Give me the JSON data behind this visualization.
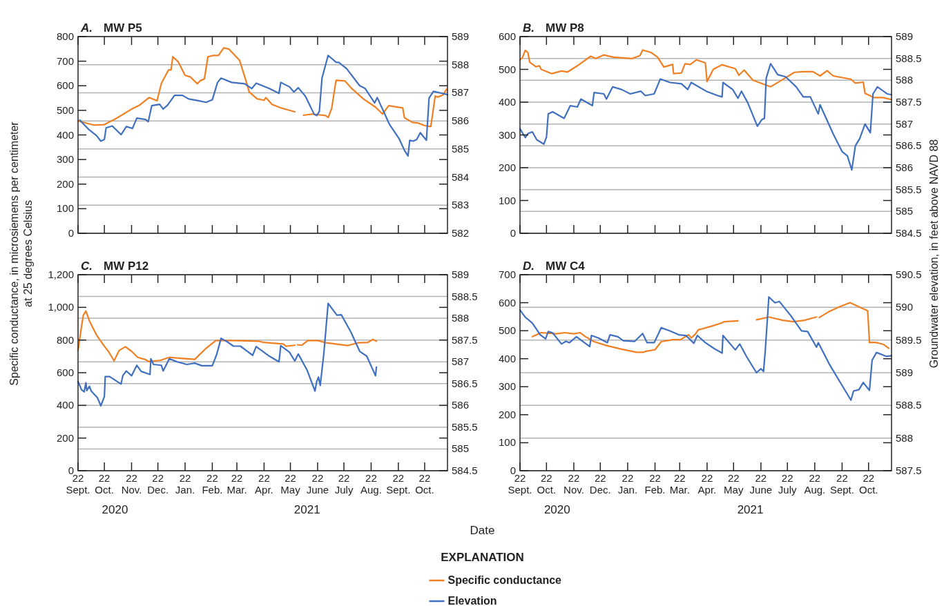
{
  "chart_data": [
    {
      "type": "line",
      "title": "A. MW P5",
      "ylabel": "Specific conductance, in microsiemens per centimeter at 25 degrees Celsius",
      "xlim": [
        "2020-09-22",
        "2021-11-17"
      ],
      "xticks": [
        {
          "value": "2020-09-22",
          "label": null
        },
        {
          "value": "2020-10-22",
          "label": null
        },
        {
          "value": "2020-11-22",
          "label": null
        },
        {
          "value": "2020-12-22",
          "label": null
        },
        {
          "value": "2021-01-22",
          "label": null
        },
        {
          "value": "2021-02-22",
          "label": null
        },
        {
          "value": "2021-03-22",
          "label": null
        },
        {
          "value": "2021-04-22",
          "label": null
        },
        {
          "value": "2021-05-22",
          "label": null
        },
        {
          "value": "2021-06-22",
          "label": null
        },
        {
          "value": "2021-07-22",
          "label": null
        },
        {
          "value": "2021-08-22",
          "label": null
        },
        {
          "value": "2021-09-22",
          "label": null
        },
        {
          "value": "2021-10-22",
          "label": null
        }
      ],
      "ylim": [
        0,
        800
      ],
      "yticks": [
        0,
        100,
        200,
        300,
        400,
        500,
        600,
        700,
        800
      ],
      "y2lim": [
        582,
        589
      ],
      "y2ticks": [
        582,
        583,
        584,
        585,
        586,
        587,
        588,
        589
      ],
      "grid": "y2",
      "tick_labels": "y",
      "series": [
        {
          "type": "line",
          "color": "#f07f22",
          "x": [
            "2020-09-22",
            "2020-10-10",
            "2020-10-22",
            "2020-11-05",
            "2020-11-22",
            "2020-12-01",
            "2020-12-12",
            "2020-12-21",
            "2020-12-26",
            "2021-01-03",
            "2021-01-06",
            "2021-01-08",
            "2021-01-14",
            "2021-01-22",
            "2021-01-28",
            "2021-02-05",
            "2021-02-08",
            "2021-02-13",
            "2021-02-17",
            "2021-02-23",
            "2021-03-01",
            "2021-03-07",
            "2021-03-13",
            "2021-03-25",
            "2021-04-01",
            "2021-04-05",
            "2021-04-14",
            "2021-04-22",
            "2021-04-24",
            "2021-05-01",
            "2021-05-11",
            "2021-05-27",
            "2021-06-01",
            "2021-06-06",
            "2021-06-16",
            "2021-07-01",
            "2021-07-04",
            "2021-07-08",
            "2021-07-13",
            "2021-07-23",
            "2021-07-30",
            "2021-08-13",
            "2021-08-27",
            "2021-09-04",
            "2021-09-11",
            "2021-09-27",
            "2021-09-29",
            "2021-10-08",
            "2021-10-14",
            "2021-10-22",
            "2021-10-29",
            "2021-11-03",
            "2021-11-06",
            "2021-11-12",
            "2021-11-16"
          ],
          "values": [
            457,
            440,
            442,
            468,
            505,
            521,
            552,
            539,
            610,
            664,
            664,
            718,
            698,
            642,
            636,
            608,
            620,
            628,
            718,
            723,
            723,
            754,
            749,
            704,
            625,
            575,
            547,
            541,
            552,
            524,
            510,
            494,
            null,
            480,
            485,
            479,
            471,
            507,
            622,
            620,
            592,
            547,
            513,
            485,
            519,
            510,
            470,
            451,
            449,
            438,
            434,
            558,
            554,
            563,
            586
          ]
        },
        {
          "type": "line",
          "axis": "y2",
          "color": "#3f6fbf",
          "x": [
            "2020-09-24",
            "2020-10-04",
            "2020-10-13",
            "2020-10-18",
            "2020-10-22",
            "2020-10-24",
            "2020-10-31",
            "2020-11-10",
            "2020-11-13",
            "2020-11-16",
            "2020-11-23",
            "2020-11-28",
            "2020-12-08",
            "2020-12-11",
            "2020-12-15",
            "2020-12-24",
            "2020-12-28",
            "2021-01-02",
            "2021-01-10",
            "2021-01-19",
            "2021-01-26",
            "2021-02-04",
            "2021-02-15",
            "2021-02-22",
            "2021-02-28",
            "2021-03-04",
            "2021-03-16",
            "2021-03-31",
            "2021-04-08",
            "2021-04-13",
            "2021-04-28",
            "2021-05-09",
            "2021-05-11",
            "2021-05-21",
            "2021-05-26",
            "2021-05-31",
            "2021-06-08",
            "2021-06-18",
            "2021-06-21",
            "2021-06-24",
            "2021-06-27",
            "2021-07-04",
            "2021-07-13",
            "2021-07-16",
            "2021-07-25",
            "2021-08-09",
            "2021-08-15",
            "2021-08-26",
            "2021-08-29",
            "2021-09-12",
            "2021-09-23",
            "2021-09-29",
            "2021-10-03",
            "2021-10-05",
            "2021-10-09",
            "2021-10-13",
            "2021-10-17",
            "2021-10-24",
            "2021-10-27",
            "2021-11-01",
            "2021-11-11",
            "2021-11-17"
          ],
          "values": [
            586.03,
            585.7,
            585.48,
            585.28,
            585.34,
            585.75,
            585.82,
            585.51,
            585.65,
            585.8,
            585.73,
            586.1,
            586.05,
            585.97,
            586.54,
            586.59,
            586.42,
            586.56,
            586.91,
            586.91,
            586.78,
            586.73,
            586.66,
            586.75,
            587.37,
            587.52,
            587.37,
            587.32,
            587.15,
            587.34,
            587.15,
            586.98,
            587.37,
            587.21,
            587.03,
            587.18,
            586.88,
            586.24,
            586.19,
            586.34,
            587.52,
            588.33,
            588.09,
            588.08,
            587.86,
            587.25,
            587.16,
            586.64,
            586.83,
            585.87,
            585.36,
            584.95,
            584.75,
            585.31,
            585.28,
            585.34,
            585.58,
            585.31,
            586.81,
            587.05,
            586.98,
            586.93
          ]
        }
      ]
    },
    {
      "type": "line",
      "title": "B. MW P8",
      "y2label": "Groundwater elevation, in feet above NAVD 88",
      "xlim": [
        "2020-09-22",
        "2021-11-17"
      ],
      "xticks": [
        {
          "value": "2020-09-22",
          "label": null
        },
        {
          "value": "2020-10-22",
          "label": null
        },
        {
          "value": "2020-11-22",
          "label": null
        },
        {
          "value": "2020-12-22",
          "label": null
        },
        {
          "value": "2021-01-22",
          "label": null
        },
        {
          "value": "2021-02-22",
          "label": null
        },
        {
          "value": "2021-03-22",
          "label": null
        },
        {
          "value": "2021-04-22",
          "label": null
        },
        {
          "value": "2021-05-22",
          "label": null
        },
        {
          "value": "2021-06-22",
          "label": null
        },
        {
          "value": "2021-07-22",
          "label": null
        },
        {
          "value": "2021-08-22",
          "label": null
        },
        {
          "value": "2021-09-22",
          "label": null
        },
        {
          "value": "2021-10-22",
          "label": null
        }
      ],
      "ylim": [
        0,
        600
      ],
      "yticks": [
        0,
        100,
        200,
        300,
        400,
        500,
        600
      ],
      "y2lim": [
        584.5,
        589
      ],
      "y2ticks": [
        584.5,
        585,
        585.5,
        586,
        586.5,
        587,
        587.5,
        588,
        588.5,
        589
      ],
      "grid": "y2",
      "tick_labels": "y",
      "series": [
        {
          "type": "line",
          "color": "#f07f22",
          "x": [
            "2020-09-22",
            "2020-09-25",
            "2020-09-28",
            "2020-10-01",
            "2020-10-03",
            "2020-10-10",
            "2020-10-14",
            "2020-10-16",
            "2020-10-28",
            "2020-11-08",
            "2020-11-15",
            "2020-11-26",
            "2020-12-11",
            "2020-12-17",
            "2020-12-26",
            "2021-01-06",
            "2021-01-27",
            "2021-02-05",
            "2021-02-08",
            "2021-02-18",
            "2021-02-25",
            "2021-03-04",
            "2021-03-14",
            "2021-03-15",
            "2021-03-24",
            "2021-03-28",
            "2021-04-03",
            "2021-04-10",
            "2021-04-20",
            "2021-04-22",
            "2021-04-29",
            "2021-05-09",
            "2021-05-24",
            "2021-05-28",
            "2021-06-03",
            "2021-06-13",
            "2021-06-22",
            "2021-07-03",
            "2021-07-13",
            "2021-07-30",
            "2021-08-09",
            "2021-08-20",
            "2021-08-28",
            "2021-09-05",
            "2021-09-12",
            "2021-10-02",
            "2021-10-07",
            "2021-10-16",
            "2021-10-18",
            "2021-10-28",
            "2021-11-07",
            "2021-11-17"
          ],
          "values": [
            529,
            537,
            558,
            551,
            522,
            508,
            511,
            500,
            487,
            495,
            492,
            511,
            540,
            533,
            544,
            537,
            533,
            542,
            559,
            551,
            537,
            507,
            515,
            487,
            489,
            517,
            515,
            529,
            520,
            463,
            500,
            514,
            502,
            482,
            498,
            467,
            458,
            447,
            463,
            491,
            493,
            493,
            480,
            496,
            480,
            470,
            458,
            461,
            427,
            414,
            414,
            408
          ]
        },
        {
          "type": "line",
          "axis": "y2",
          "color": "#3f6fbf",
          "x": [
            "2020-09-22",
            "2020-09-28",
            "2020-10-01",
            "2020-10-06",
            "2020-10-11",
            "2020-10-19",
            "2020-10-22",
            "2020-10-24",
            "2020-10-29",
            "2020-11-11",
            "2020-11-18",
            "2020-11-26",
            "2020-11-30",
            "2020-12-13",
            "2020-12-15",
            "2020-12-26",
            "2020-12-29",
            "2021-01-05",
            "2021-01-15",
            "2021-01-25",
            "2021-02-06",
            "2021-02-11",
            "2021-02-21",
            "2021-02-28",
            "2021-03-11",
            "2021-03-24",
            "2021-03-31",
            "2021-04-04",
            "2021-04-21",
            "2021-05-04",
            "2021-05-09",
            "2021-05-10",
            "2021-05-21",
            "2021-05-27",
            "2021-05-31",
            "2021-06-07",
            "2021-06-18",
            "2021-06-23",
            "2021-06-26",
            "2021-06-28",
            "2021-07-03",
            "2021-07-11",
            "2021-07-20",
            "2021-08-01",
            "2021-08-09",
            "2021-08-17",
            "2021-08-26",
            "2021-08-28",
            "2021-09-12",
            "2021-09-22",
            "2021-09-28",
            "2021-10-03",
            "2021-10-07",
            "2021-10-12",
            "2021-10-18",
            "2021-10-24",
            "2021-10-27",
            "2021-11-01",
            "2021-11-12",
            "2021-11-17"
          ],
          "values": [
            586.89,
            586.69,
            586.78,
            586.82,
            586.64,
            586.54,
            586.7,
            587.23,
            587.28,
            587.13,
            587.42,
            587.39,
            587.57,
            587.42,
            587.72,
            587.69,
            587.57,
            587.85,
            587.79,
            587.69,
            587.75,
            587.65,
            587.69,
            588.03,
            587.95,
            587.92,
            587.79,
            587.95,
            587.75,
            587.65,
            587.62,
            587.95,
            587.79,
            587.59,
            587.75,
            587.49,
            586.95,
            587.1,
            587.13,
            588.05,
            588.38,
            588.13,
            588.08,
            587.85,
            587.62,
            587.62,
            587.23,
            587.44,
            586.77,
            586.37,
            586.27,
            585.95,
            586.5,
            586.67,
            587.0,
            586.8,
            587.69,
            587.85,
            587.69,
            587.67
          ]
        }
      ]
    },
    {
      "type": "line",
      "title": "C. MW P12",
      "xlabel": "Date",
      "annotations": [
        "2020",
        "2021"
      ],
      "xlim": [
        "2020-09-22",
        "2021-11-17"
      ],
      "xticks": [
        {
          "value": "2020-09-22",
          "label": "22\nSept."
        },
        {
          "value": "2020-10-22",
          "label": "22\nOct."
        },
        {
          "value": "2020-11-22",
          "label": "22\nNov."
        },
        {
          "value": "2020-12-22",
          "label": "22\nDec."
        },
        {
          "value": "2021-01-22",
          "label": "22\nJan."
        },
        {
          "value": "2021-02-22",
          "label": "22\nFeb."
        },
        {
          "value": "2021-03-22",
          "label": "22\nMar."
        },
        {
          "value": "2021-04-22",
          "label": "22\nApr."
        },
        {
          "value": "2021-05-22",
          "label": "22\nMay"
        },
        {
          "value": "2021-06-22",
          "label": "22\nJune"
        },
        {
          "value": "2021-07-22",
          "label": "22\nJuly"
        },
        {
          "value": "2021-08-22",
          "label": "22\nAug."
        },
        {
          "value": "2021-09-22",
          "label": "22\nSept."
        },
        {
          "value": "2021-10-22",
          "label": "22\nOct."
        }
      ],
      "ylim": [
        0,
        1200
      ],
      "yticks": [
        0,
        200,
        400,
        600,
        800,
        {
          "value": 1000,
          "label": "1,000"
        },
        {
          "value": 1200,
          "label": "1,200"
        }
      ],
      "y2lim": [
        584.5,
        589
      ],
      "y2ticks": [
        584.5,
        585,
        585.5,
        586,
        586.5,
        587,
        587.5,
        588,
        588.5,
        589
      ],
      "grid": "y2",
      "series": [
        {
          "type": "line",
          "color": "#f07f22",
          "x": [
            "2020-09-22",
            "2020-09-25",
            "2020-09-28",
            "2020-10-01",
            "2020-10-05",
            "2020-10-13",
            "2020-10-22",
            "2020-10-27",
            "2020-11-02",
            "2020-11-08",
            "2020-11-15",
            "2020-11-22",
            "2020-11-29",
            "2020-12-07",
            "2020-12-12",
            "2020-12-25",
            "2021-01-04",
            "2021-01-17",
            "2021-02-02",
            "2021-02-14",
            "2021-02-26",
            "2021-03-17",
            "2021-04-16",
            "2021-04-22",
            "2021-05-14",
            "2021-05-17",
            "2021-05-27",
            "2021-05-28",
            "2021-05-30",
            "2021-06-04",
            "2021-06-11",
            "2021-06-22",
            "2021-07-02",
            "2021-07-26",
            "2021-08-07",
            "2021-08-18",
            "2021-08-24",
            "2021-08-28"
          ],
          "values": [
            737,
            849,
            952,
            978,
            917,
            831,
            762,
            728,
            673,
            737,
            759,
            731,
            694,
            682,
            668,
            676,
            694,
            688,
            682,
            745,
            797,
            797,
            793,
            785,
            776,
            762,
            768,
            null,
            771,
            768,
            797,
            797,
            783,
            766,
            783,
            785,
            804,
            793
          ]
        },
        {
          "type": "line",
          "axis": "y2",
          "color": "#3f6fbf",
          "x": [
            "2020-09-22",
            "2020-09-26",
            "2020-09-29",
            "2020-10-01",
            "2020-10-02",
            "2020-10-05",
            "2020-10-07",
            "2020-10-14",
            "2020-10-18",
            "2020-10-22",
            "2020-10-23",
            "2020-10-28",
            "2020-11-10",
            "2020-11-12",
            "2020-11-16",
            "2020-11-22",
            "2020-11-28",
            "2020-12-03",
            "2020-12-13",
            "2020-12-14",
            "2020-12-17",
            "2020-12-26",
            "2020-12-28",
            "2021-01-04",
            "2021-01-13",
            "2021-01-24",
            "2021-02-02",
            "2021-02-10",
            "2021-02-22",
            "2021-02-27",
            "2021-03-04",
            "2021-03-11",
            "2021-03-18",
            "2021-03-26",
            "2021-04-09",
            "2021-04-13",
            "2021-04-28",
            "2021-05-09",
            "2021-05-11",
            "2021-05-21",
            "2021-05-27",
            "2021-05-31",
            "2021-06-10",
            "2021-06-19",
            "2021-06-21",
            "2021-06-23",
            "2021-06-25",
            "2021-06-29",
            "2021-07-04",
            "2021-07-14",
            "2021-07-19",
            "2021-07-30",
            "2021-08-09",
            "2021-08-17",
            "2021-08-27",
            "2021-08-28"
          ],
          "values": [
            586.55,
            586.36,
            586.31,
            586.52,
            586.34,
            586.44,
            586.33,
            586.18,
            585.99,
            586.2,
            586.66,
            586.66,
            586.49,
            586.68,
            586.79,
            586.68,
            586.92,
            586.78,
            586.71,
            587.07,
            586.94,
            586.92,
            586.79,
            587.07,
            587.0,
            586.94,
            586.97,
            586.91,
            586.91,
            587.17,
            587.54,
            587.46,
            587.36,
            587.36,
            587.15,
            587.35,
            587.13,
            587.0,
            587.37,
            587.22,
            587.02,
            587.18,
            586.81,
            586.33,
            586.55,
            586.65,
            586.46,
            587.17,
            588.34,
            588.07,
            588.08,
            587.68,
            587.24,
            587.13,
            586.68,
            586.88
          ]
        }
      ]
    },
    {
      "type": "line",
      "title": "D. MW C4",
      "annotations": [
        "2020",
        "2021"
      ],
      "legend": "bottom",
      "legend_title": "EXPLANATION",
      "xlim": [
        "2020-09-22",
        "2021-11-17"
      ],
      "xticks": [
        {
          "value": "2020-09-22",
          "label": "22\nSept."
        },
        {
          "value": "2020-10-22",
          "label": "22\nOct."
        },
        {
          "value": "2020-11-22",
          "label": "22\nNov."
        },
        {
          "value": "2020-12-22",
          "label": "22\nDec."
        },
        {
          "value": "2021-01-22",
          "label": "22\nJan."
        },
        {
          "value": "2021-02-22",
          "label": "22\nFeb."
        },
        {
          "value": "2021-03-22",
          "label": "22\nMar."
        },
        {
          "value": "2021-04-22",
          "label": "22\nApr."
        },
        {
          "value": "2021-05-22",
          "label": "22\nMay"
        },
        {
          "value": "2021-06-22",
          "label": "22\nJune"
        },
        {
          "value": "2021-07-22",
          "label": "22\nJuly"
        },
        {
          "value": "2021-08-22",
          "label": "22\nAug."
        },
        {
          "value": "2021-09-22",
          "label": "22\nSept."
        },
        {
          "value": "2021-10-22",
          "label": "22\nOct."
        }
      ],
      "ylim": [
        0,
        700
      ],
      "yticks": [
        0,
        100,
        200,
        300,
        400,
        500,
        600,
        700
      ],
      "y2lim": [
        587.5,
        590.5
      ],
      "y2ticks": [
        587.5,
        588,
        588.5,
        589,
        589.5,
        590,
        590.5
      ],
      "grid": "y2",
      "series": [
        {
          "type": "line",
          "name": "Specific conductance",
          "color": "#f07f22",
          "x": [
            "2020-10-06",
            "2020-10-16",
            "2020-11-02",
            "2020-11-12",
            "2020-11-22",
            "2020-11-29",
            "2020-12-05",
            "2020-12-15",
            "2020-12-29",
            "2021-01-15",
            "2021-02-01",
            "2021-02-09",
            "2021-02-11",
            "2021-02-22",
            "2021-03-01",
            "2021-03-14",
            "2021-03-23",
            "2021-04-01",
            "2021-04-04",
            "2021-04-09",
            "2021-04-12",
            "2021-04-27",
            "2021-05-09",
            "2021-05-11",
            "2021-05-27",
            "2021-06-05",
            "2021-06-17",
            "2021-07-01",
            "2021-07-17",
            "2021-07-29",
            "2021-08-10",
            "2021-08-24",
            "2021-08-25",
            "2021-08-27",
            "2021-09-06",
            "2021-09-18",
            "2021-10-01",
            "2021-10-14",
            "2021-10-21",
            "2021-10-23",
            "2021-10-30",
            "2021-11-08",
            "2021-11-14"
          ],
          "values": [
            479,
            493,
            489,
            493,
            489,
            493,
            479,
            461,
            447,
            434,
            423,
            423,
            426,
            432,
            461,
            468,
            468,
            486,
            474,
            489,
            503,
            516,
            528,
            532,
            535,
            null,
            539,
            549,
            537,
            532,
            537,
            549,
            null,
            547,
            566,
            584,
            600,
            581,
            571,
            458,
            458,
            451,
            437
          ]
        },
        {
          "type": "line",
          "name": "Elevation",
          "axis": "y2",
          "color": "#3f6fbf",
          "x": [
            "2020-09-22",
            "2020-09-28",
            "2020-10-06",
            "2020-10-15",
            "2020-10-21",
            "2020-10-24",
            "2020-10-29",
            "2020-11-08",
            "2020-11-13",
            "2020-11-17",
            "2020-11-25",
            "2020-12-10",
            "2020-12-12",
            "2020-12-20",
            "2020-12-30",
            "2021-01-02",
            "2021-01-11",
            "2021-01-17",
            "2021-01-30",
            "2021-02-08",
            "2021-02-13",
            "2021-02-21",
            "2021-02-26",
            "2021-03-01",
            "2021-03-11",
            "2021-03-21",
            "2021-03-29",
            "2021-04-07",
            "2021-04-11",
            "2021-04-20",
            "2021-04-30",
            "2021-05-09",
            "2021-05-10",
            "2021-05-24",
            "2021-05-29",
            "2021-06-06",
            "2021-06-17",
            "2021-06-22",
            "2021-06-25",
            "2021-06-27",
            "2021-07-01",
            "2021-07-08",
            "2021-07-13",
            "2021-07-26",
            "2021-08-07",
            "2021-08-14",
            "2021-08-24",
            "2021-08-26",
            "2021-09-08",
            "2021-09-20",
            "2021-10-02",
            "2021-10-05",
            "2021-10-11",
            "2021-10-16",
            "2021-10-23",
            "2021-10-26",
            "2021-10-31",
            "2021-11-11",
            "2021-11-17"
          ],
          "values": [
            589.96,
            589.85,
            589.76,
            589.58,
            589.52,
            589.63,
            589.61,
            589.44,
            589.48,
            589.46,
            589.55,
            589.4,
            589.57,
            589.53,
            589.46,
            589.58,
            589.55,
            589.49,
            589.48,
            589.6,
            589.46,
            589.46,
            589.6,
            589.69,
            589.64,
            589.58,
            589.57,
            589.45,
            589.57,
            589.46,
            589.37,
            589.3,
            589.57,
            589.35,
            589.44,
            589.24,
            589.0,
            589.06,
            589.02,
            589.35,
            590.16,
            590.07,
            590.09,
            589.87,
            589.64,
            589.63,
            589.39,
            589.46,
            589.12,
            588.85,
            588.58,
            588.72,
            588.74,
            588.85,
            588.73,
            589.19,
            589.31,
            589.25,
            589.26
          ]
        }
      ]
    }
  ]
}
